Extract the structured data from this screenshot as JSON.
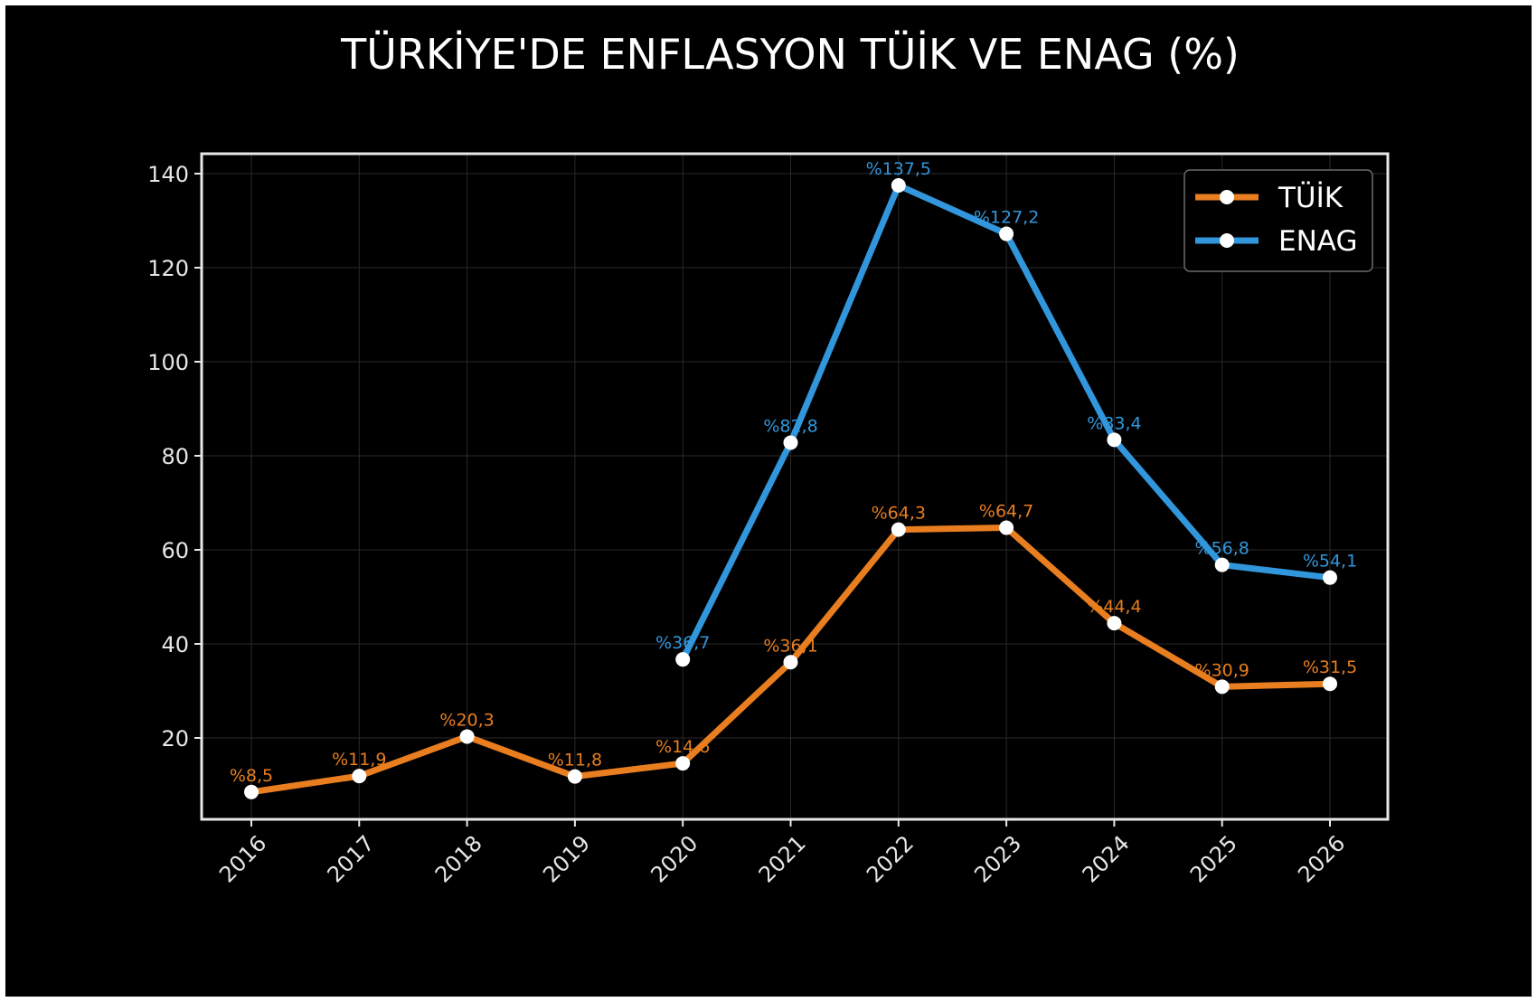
{
  "chart_data": {
    "type": "line",
    "title": "TÜRKİYE'DE ENFLASYON TÜİK VE ENAG (%)",
    "xlabel": "",
    "ylabel": "",
    "categories": [
      "2016",
      "2017",
      "2018",
      "2019",
      "2020",
      "2021",
      "2022",
      "2023",
      "2024",
      "2025",
      "2026"
    ],
    "ylim": [
      0,
      140
    ],
    "yticks": [
      20,
      40,
      60,
      80,
      100,
      120,
      140
    ],
    "grid": true,
    "legend_position": "top-right",
    "series": [
      {
        "name": "TÜİK",
        "color": "#e87e1f",
        "values": [
          8.5,
          11.9,
          20.3,
          11.8,
          14.6,
          36.1,
          64.3,
          64.7,
          44.4,
          30.9,
          31.5
        ],
        "labels": [
          "%8,5",
          "%11,9",
          "%20,3",
          "%11,8",
          "%14,6",
          "%36,1",
          "%64,3",
          "%64,7",
          "%44,4",
          "%30,9",
          "%31,5"
        ]
      },
      {
        "name": "ENAG",
        "color": "#3296dc",
        "values": [
          null,
          null,
          null,
          null,
          36.7,
          82.8,
          137.5,
          127.2,
          83.4,
          56.8,
          54.1
        ],
        "labels": [
          "",
          "",
          "",
          "",
          "%36,7",
          "%82,8",
          "%137,5",
          "%127,2",
          "%83,4",
          "%56,8",
          "%54,1"
        ]
      }
    ]
  }
}
